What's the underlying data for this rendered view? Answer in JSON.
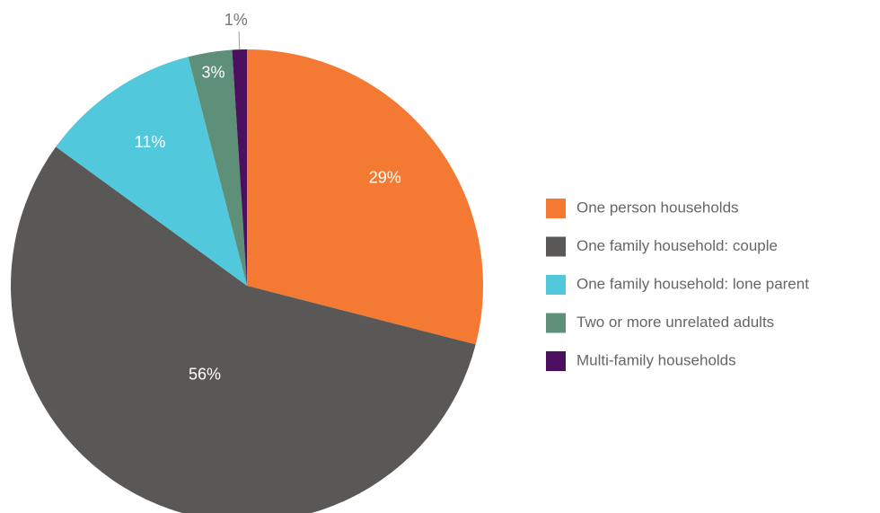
{
  "chart_data": {
    "type": "pie",
    "categories": [
      "One person households",
      "One family household: couple",
      "One family household: lone parent",
      "Two or more unrelated adults",
      "Multi-family households"
    ],
    "values": [
      29,
      56,
      11,
      3,
      1
    ],
    "value_labels": [
      "29%",
      "56%",
      "11%",
      "3%",
      "1%"
    ],
    "colors": [
      "#f47a33",
      "#5a5856",
      "#52c8dc",
      "#5e8f78",
      "#4b0f5e"
    ],
    "legend": "right"
  }
}
